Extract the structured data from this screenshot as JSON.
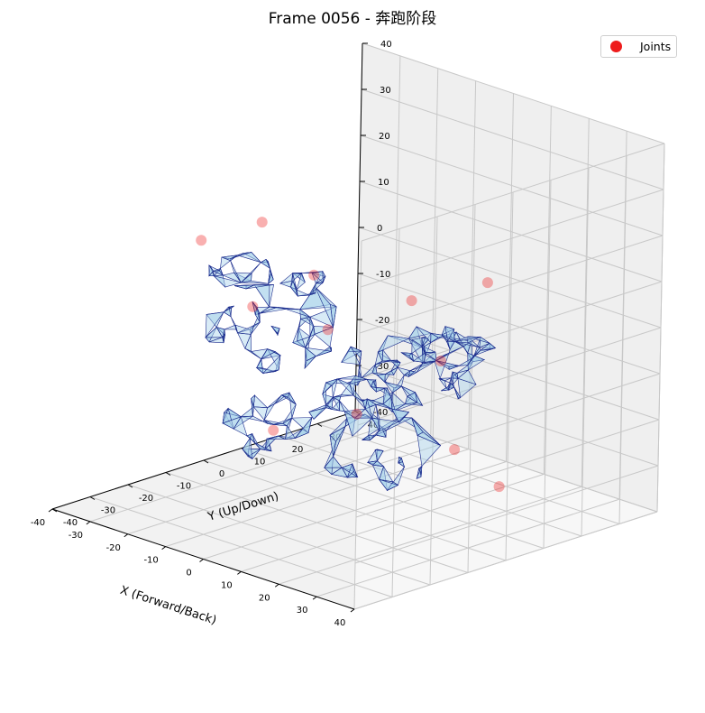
{
  "chart_data": {
    "type": "scatter",
    "projection": "3d",
    "title": "Frame 0056 - 奔跑阶段",
    "xlabel": "X (Forward/Back)",
    "ylabel": "Y (Up/Down)",
    "zlabel": "",
    "xlim": [
      -40,
      40
    ],
    "ylim": [
      -40,
      40
    ],
    "zlim": [
      -40,
      40
    ],
    "x_ticks": [
      "-40",
      "-30",
      "-20",
      "-10",
      "0",
      "10",
      "20",
      "30",
      "40"
    ],
    "y_ticks": [
      "-40",
      "-30",
      "-20",
      "-10",
      "0",
      "10",
      "20",
      "30",
      "40"
    ],
    "z_ticks": [
      "-40",
      "-30",
      "-20",
      "-10",
      "0",
      "10",
      "20",
      "30",
      "40"
    ],
    "grid": true,
    "legend": {
      "position": "top-right",
      "entries": [
        {
          "name": "Joints",
          "color": "#ee1c1c",
          "marker": "circle"
        }
      ]
    },
    "mesh": {
      "face_color": "#a9d3ea",
      "edge_color": "#1a2a8c",
      "style": "wireframe-surface"
    },
    "series": [
      {
        "name": "Joints",
        "color": "#ee1c1c",
        "points": [
          {
            "x": -22,
            "y": -20,
            "z": 18
          },
          {
            "x": -14,
            "y": -12,
            "z": 22
          },
          {
            "x": -8,
            "y": -4,
            "z": 10
          },
          {
            "x": -18,
            "y": -10,
            "z": 2
          },
          {
            "x": -10,
            "y": 2,
            "z": -4
          },
          {
            "x": 4,
            "y": 10,
            "z": 4
          },
          {
            "x": 14,
            "y": 20,
            "z": 8
          },
          {
            "x": 10,
            "y": 12,
            "z": -8
          },
          {
            "x": 2,
            "y": -2,
            "z": -18
          },
          {
            "x": -6,
            "y": -16,
            "z": -20
          },
          {
            "x": 18,
            "y": 8,
            "z": -24
          },
          {
            "x": 24,
            "y": 14,
            "z": -32
          }
        ]
      }
    ]
  }
}
